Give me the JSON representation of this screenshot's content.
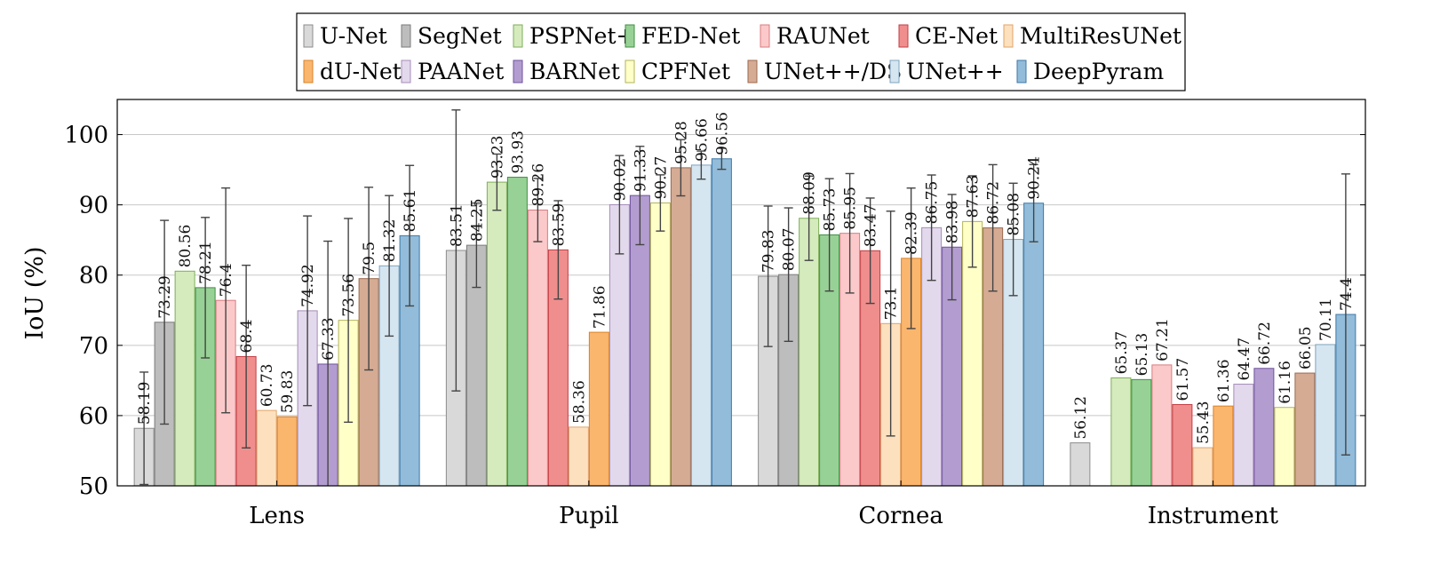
{
  "chart_data": {
    "type": "bar",
    "ylabel": "IoU (%)",
    "xlabel": "",
    "ylim": [
      50,
      105
    ],
    "yticks": [
      50,
      60,
      70,
      80,
      90,
      100
    ],
    "grid": "horizontal",
    "legend_position": "top",
    "categories": [
      "Lens",
      "Pupil",
      "Cornea",
      "Instrument"
    ],
    "series": [
      {
        "name": "U-Net",
        "color": "#d9d9d9",
        "stroke": "#8c8c8c",
        "values": [
          58.19,
          83.51,
          79.83,
          56.12
        ],
        "errors": [
          8,
          20,
          10,
          0
        ]
      },
      {
        "name": "SegNet",
        "color": "#bdbdbd",
        "stroke": "#7a7a7a",
        "values": [
          73.29,
          84.25,
          80.07,
          null
        ],
        "errors": [
          14.5,
          6,
          9.5,
          0
        ]
      },
      {
        "name": "PSPNet+",
        "color": "#d5ebbd",
        "stroke": "#7fae5a",
        "values": [
          80.56,
          93.23,
          88.09,
          65.37
        ],
        "errors": [
          0,
          4,
          6,
          0
        ]
      },
      {
        "name": "FED-Net",
        "color": "#98d196",
        "stroke": "#3f8f43",
        "values": [
          78.21,
          93.93,
          85.73,
          65.13
        ],
        "errors": [
          10,
          0,
          8,
          0
        ]
      },
      {
        "name": "RAUNet",
        "color": "#fcc9ca",
        "stroke": "#d87b7f",
        "values": [
          76.4,
          89.26,
          85.95,
          67.21
        ],
        "errors": [
          16,
          4.5,
          8.5,
          0
        ]
      },
      {
        "name": "CE-Net",
        "color": "#f08e8d",
        "stroke": "#c23e43",
        "values": [
          68.4,
          83.59,
          83.47,
          61.57
        ],
        "errors": [
          13,
          7,
          7.5,
          0
        ]
      },
      {
        "name": "MultiResUNet",
        "color": "#fde1bf",
        "stroke": "#e0a36a",
        "values": [
          60.73,
          58.36,
          73.1,
          55.43
        ],
        "errors": [
          0,
          0,
          16,
          0
        ]
      },
      {
        "name": "dU-Net",
        "color": "#fbb66e",
        "stroke": "#d98128",
        "values": [
          59.83,
          71.86,
          82.39,
          61.36
        ],
        "errors": [
          0,
          0,
          10,
          0
        ]
      },
      {
        "name": "PAANet",
        "color": "#e3d9ec",
        "stroke": "#a48cb8",
        "values": [
          74.92,
          90.02,
          86.75,
          64.47
        ],
        "errors": [
          13.5,
          7,
          7.5,
          0
        ]
      },
      {
        "name": "BARNet",
        "color": "#b39dd0",
        "stroke": "#6f529b",
        "values": [
          67.33,
          91.33,
          83.98,
          66.72
        ],
        "errors": [
          17.5,
          7,
          7.5,
          0
        ]
      },
      {
        "name": "CPFNet",
        "color": "#ffffc8",
        "stroke": "#b3b35a",
        "values": [
          73.56,
          90.27,
          87.63,
          61.16
        ],
        "errors": [
          14.5,
          4,
          6.5,
          0
        ]
      },
      {
        "name": "UNet++/DS",
        "color": "#d5ab94",
        "stroke": "#9b6a4f",
        "values": [
          79.5,
          95.28,
          86.72,
          66.05
        ],
        "errors": [
          13,
          4,
          9,
          0
        ]
      },
      {
        "name": "UNet++",
        "color": "#d5e6f1",
        "stroke": "#7ea3bd",
        "values": [
          81.32,
          95.66,
          85.08,
          70.11
        ],
        "errors": [
          10,
          2,
          8,
          0
        ]
      },
      {
        "name": "DeepPyram",
        "color": "#92bcd9",
        "stroke": "#3e78a8",
        "values": [
          85.61,
          96.56,
          90.24,
          74.4
        ],
        "errors": [
          10,
          1.5,
          5.5,
          20
        ]
      }
    ]
  }
}
